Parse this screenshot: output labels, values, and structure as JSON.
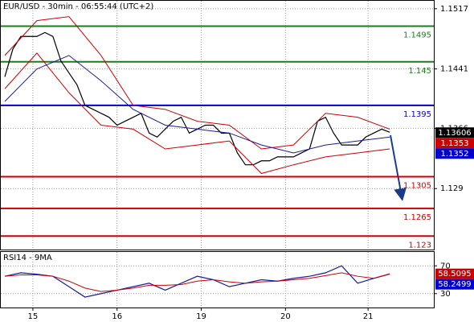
{
  "chart_data": [
    {
      "type": "line",
      "title": "EUR/USD - 30min - 06:55:44 (UTC+2)",
      "xlim": [
        -0.5,
        53.5
      ],
      "ylim": [
        1.1213,
        1.1527
      ],
      "yticks": [
        1.1517,
        1.1441,
        1.1366,
        1.129
      ],
      "xticks": [
        {
          "value": 3.5,
          "label": "15"
        },
        {
          "value": 14,
          "label": "16"
        },
        {
          "value": 24.5,
          "label": "19"
        },
        {
          "value": 35,
          "label": "20"
        },
        {
          "value": 45.3,
          "label": "21"
        }
      ],
      "grid": true,
      "levels": [
        {
          "value": 1.1495,
          "color": "#1e7b1e"
        },
        {
          "value": 1.145,
          "color": "#1e7b1e"
        },
        {
          "value": 1.1395,
          "color": "#0000cc"
        },
        {
          "value": 1.1305,
          "color": "#cc0000"
        },
        {
          "value": 1.1265,
          "color": "#cc0000"
        },
        {
          "value": 1.123,
          "color": "#cc0000"
        }
      ],
      "price_tags": [
        {
          "value": 1.13606,
          "color": "#000000"
        },
        {
          "value": 1.1353,
          "color": "#cc0000"
        },
        {
          "value": 1.1352,
          "color": "#0000cc"
        }
      ],
      "series": [
        {
          "name": "price",
          "color": "#000000",
          "x": [
            0,
            1,
            2,
            3,
            4,
            5,
            6,
            7,
            8,
            9,
            10,
            11,
            12,
            13,
            14,
            15,
            16,
            17,
            18,
            19,
            20,
            21,
            22,
            23,
            24,
            25,
            26,
            27,
            28,
            29,
            30,
            31,
            32,
            33,
            34,
            35,
            36,
            37,
            38,
            39,
            40,
            41,
            42,
            43,
            44,
            45,
            46,
            47,
            48
          ],
          "values": [
            1.1431,
            1.1466,
            1.1482,
            1.1482,
            1.1482,
            1.1487,
            1.1482,
            1.1451,
            1.1436,
            1.1421,
            1.1395,
            1.139,
            1.1385,
            1.138,
            1.137,
            1.1375,
            1.138,
            1.1385,
            1.136,
            1.1355,
            1.1365,
            1.1375,
            1.138,
            1.136,
            1.1365,
            1.137,
            1.137,
            1.136,
            1.136,
            1.1335,
            1.132,
            1.132,
            1.1325,
            1.1325,
            1.133,
            1.133,
            1.133,
            1.1335,
            1.134,
            1.1375,
            1.138,
            1.136,
            1.1345,
            1.1345,
            1.1345,
            1.1355,
            1.136,
            1.1365,
            1.1361
          ]
        },
        {
          "name": "upper",
          "color": "#cc0000",
          "x": [
            0,
            4,
            8,
            12,
            16,
            20,
            24,
            28,
            32,
            36,
            40,
            44,
            48
          ],
          "values": [
            1.1458,
            1.1502,
            1.1507,
            1.1458,
            1.1395,
            1.139,
            1.1375,
            1.137,
            1.134,
            1.1345,
            1.1385,
            1.138,
            1.1365
          ]
        },
        {
          "name": "lower",
          "color": "#cc0000",
          "x": [
            0,
            4,
            8,
            12,
            16,
            20,
            24,
            28,
            32,
            36,
            40,
            44,
            48
          ],
          "values": [
            1.1416,
            1.1461,
            1.1411,
            1.137,
            1.1365,
            1.134,
            1.1345,
            1.135,
            1.1309,
            1.132,
            1.133,
            1.1335,
            1.134
          ]
        },
        {
          "name": "ma",
          "color": "#1a1aa0",
          "x": [
            0,
            4,
            8,
            12,
            16,
            20,
            24,
            28,
            32,
            36,
            40,
            44,
            48
          ],
          "values": [
            1.14,
            1.1441,
            1.1458,
            1.1426,
            1.139,
            1.137,
            1.1365,
            1.136,
            1.1345,
            1.1335,
            1.1345,
            1.135,
            1.1355
          ]
        }
      ]
    },
    {
      "type": "line",
      "title": "RSI14 - 9MA",
      "xlim": [
        -0.5,
        53.5
      ],
      "ylim": [
        10,
        90
      ],
      "yticks": [
        70,
        30
      ],
      "grid": true,
      "price_tags": [
        {
          "value": 58.5095,
          "color": "#cc0000"
        },
        {
          "value": 58.2499,
          "color": "#0000cc"
        }
      ],
      "series": [
        {
          "name": "rsi",
          "color": "#1a1aa0",
          "x": [
            0,
            2,
            4,
            6,
            8,
            10,
            12,
            14,
            16,
            18,
            20,
            22,
            24,
            26,
            28,
            30,
            32,
            34,
            36,
            38,
            40,
            42,
            44,
            46,
            48
          ],
          "values": [
            55,
            60,
            58,
            55,
            40,
            25,
            30,
            35,
            40,
            45,
            35,
            45,
            55,
            50,
            40,
            45,
            50,
            48,
            52,
            55,
            60,
            70,
            45,
            52,
            58.2499
          ]
        },
        {
          "name": "ma",
          "color": "#cc0000",
          "x": [
            0,
            2,
            4,
            6,
            8,
            10,
            12,
            14,
            16,
            18,
            20,
            22,
            24,
            26,
            28,
            30,
            32,
            34,
            36,
            38,
            40,
            42,
            44,
            46,
            48
          ],
          "values": [
            55,
            57,
            57,
            55,
            48,
            38,
            33,
            35,
            38,
            42,
            42,
            43,
            48,
            50,
            47,
            45,
            47,
            48,
            50,
            52,
            56,
            60,
            55,
            52,
            58.5095
          ]
        }
      ]
    }
  ]
}
